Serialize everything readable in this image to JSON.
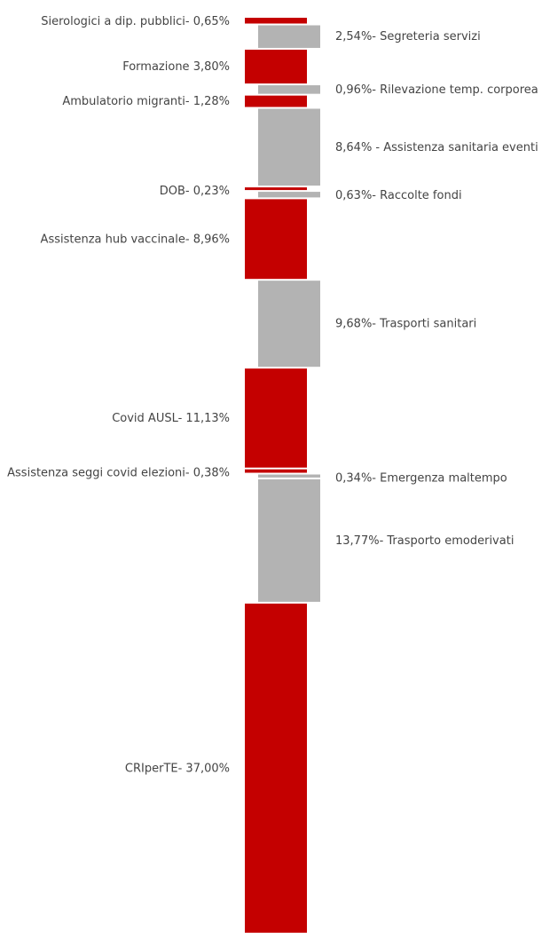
{
  "chart_data": {
    "type": "bar",
    "orientation": "stacked-column",
    "grid": false,
    "legend": "none",
    "colors": {
      "left": "#c40000",
      "right": "#b3b3b3"
    },
    "segments": [
      {
        "side": "left",
        "label": "Sierologici a dip. pubblici- 0,65%",
        "value": 0.65
      },
      {
        "side": "right",
        "label": "2,54%- Segreteria servizi",
        "value": 2.54
      },
      {
        "side": "left",
        "label": "Formazione 3,80%",
        "value": 3.8
      },
      {
        "side": "right",
        "label": "0,96%- Rilevazione temp. corporea",
        "value": 0.96
      },
      {
        "side": "left",
        "label": "Ambulatorio migranti- 1,28%",
        "value": 1.28
      },
      {
        "side": "right",
        "label": "8,64% - Assistenza sanitaria eventi",
        "value": 8.64
      },
      {
        "side": "left",
        "label": "DOB- 0,23%",
        "value": 0.23
      },
      {
        "side": "right",
        "label": "0,63%- Raccolte fondi",
        "value": 0.63
      },
      {
        "side": "left",
        "label": "Assistenza hub vaccinale- 8,96%",
        "value": 8.96
      },
      {
        "side": "right",
        "label": "9,68%- Trasporti sanitari",
        "value": 9.68
      },
      {
        "side": "left",
        "label": "Covid AUSL- 11,13%",
        "value": 11.13
      },
      {
        "side": "left",
        "label": "Assistenza seggi covid elezioni- 0,38%",
        "value": 0.38
      },
      {
        "side": "right",
        "label": "0,34%- Emergenza maltempo",
        "value": 0.34
      },
      {
        "side": "right",
        "label": "13,77%- Trasporto emoderivati",
        "value": 13.77
      },
      {
        "side": "left",
        "label": "CRIperTE- 37,00%",
        "value": 37.0
      }
    ]
  }
}
